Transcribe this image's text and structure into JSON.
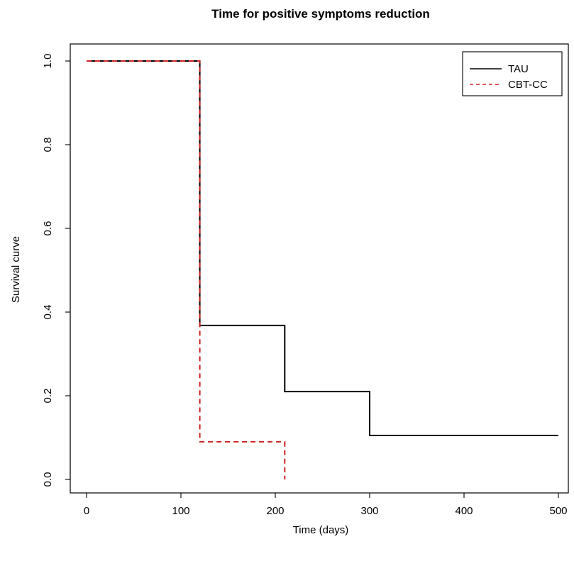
{
  "chart_data": {
    "type": "line",
    "title": "Time for positive symptoms reduction",
    "xlabel": "Time (days)",
    "ylabel": "Survival curve",
    "xlim": [
      0,
      500
    ],
    "ylim": [
      0,
      1
    ],
    "x_ticks": [
      0,
      100,
      200,
      300,
      400,
      500
    ],
    "y_ticks": [
      0.0,
      0.2,
      0.4,
      0.6,
      0.8,
      1.0
    ],
    "x_tick_labels": [
      "0",
      "100",
      "200",
      "300",
      "400",
      "500"
    ],
    "y_tick_labels": [
      "0.0",
      "0.2",
      "0.4",
      "0.6",
      "0.8",
      "1.0"
    ],
    "grid": false,
    "legend_position": "top-right",
    "step": true,
    "series": [
      {
        "name": "TAU",
        "color": "#000000",
        "line_style": "solid",
        "x": [
          0,
          120,
          210,
          300,
          500
        ],
        "y": [
          1.0,
          0.368,
          0.21,
          0.105,
          0.105
        ]
      },
      {
        "name": "CBT-CC",
        "color": "#cc2222",
        "line_style": "dashed",
        "x": [
          0,
          120,
          210,
          210
        ],
        "y": [
          1.0,
          0.09,
          0.09,
          0.0
        ]
      }
    ]
  }
}
